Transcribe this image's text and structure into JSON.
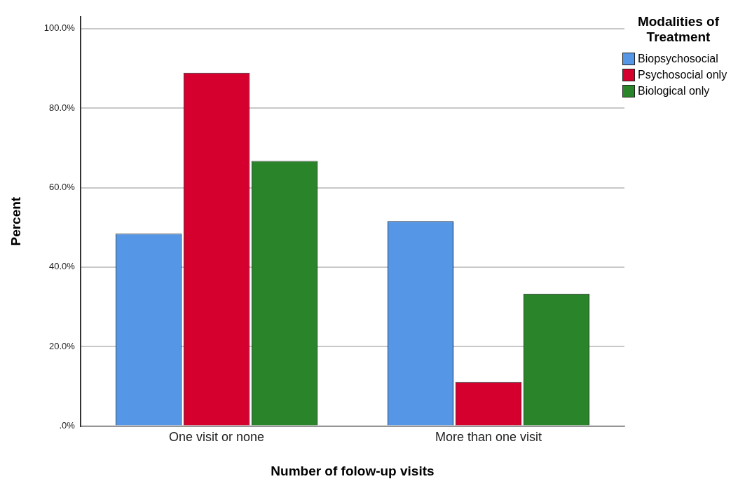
{
  "chart_data": {
    "type": "bar",
    "xlabel": "Number of folow-up visits",
    "ylabel": "Percent",
    "legend_title": "Modalities of Treatment",
    "categories": [
      "One visit or none",
      "More than one visit"
    ],
    "series": [
      {
        "name": "Biopsychosocial",
        "color": "#5596e6",
        "values": [
          48.4,
          51.6
        ]
      },
      {
        "name": "Psychosocial only",
        "color": "#d6002f",
        "values": [
          88.9,
          11.1
        ]
      },
      {
        "name": "Biological only",
        "color": "#2a8429",
        "values": [
          66.7,
          33.3
        ]
      }
    ],
    "ylim": [
      0,
      103
    ],
    "yticks": [
      {
        "value": 0,
        "label": ".0%"
      },
      {
        "value": 20,
        "label": "20.0%"
      },
      {
        "value": 40,
        "label": "40.0%"
      },
      {
        "value": 60,
        "label": "60.0%"
      },
      {
        "value": 80,
        "label": "80.0%"
      },
      {
        "value": 100,
        "label": "100.0%"
      }
    ],
    "grid": "y",
    "legend": "top right"
  }
}
